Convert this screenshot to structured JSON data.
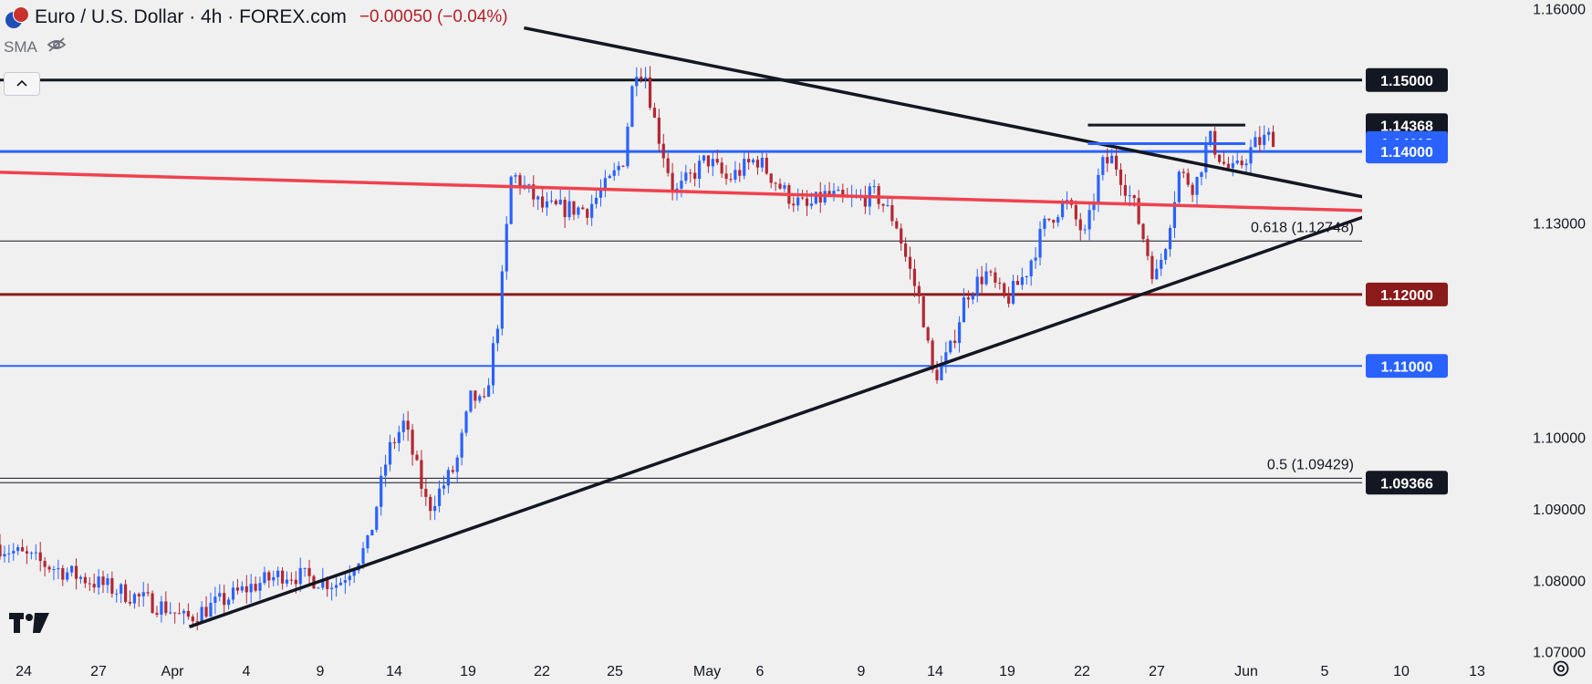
{
  "header": {
    "title": "Euro / U.S. Dollar · 4h · FOREX.com",
    "change": "−0.00050 (−0.04%)",
    "indicator": "SMA"
  },
  "icons": [
    "eur-usd-flag-icon",
    "eye-off-icon",
    "chevron-up-icon",
    "tradingview-logo-icon",
    "settings-gear-icon"
  ],
  "colors": {
    "up": "#2962ff",
    "down": "#b22833",
    "blue_level": "#2962ff",
    "dark_red_level": "#8b1a1a",
    "red_trend": "#f0414e",
    "black": "#131722",
    "grid_bg": "#f0f0f0"
  },
  "chart_data": {
    "type": "candlestick",
    "title": "Euro / U.S. Dollar · 4h · FOREX.com",
    "ylim": [
      1.0655,
      1.1612
    ],
    "y_ticks": [
      "1.16000",
      "1.13000",
      "1.10000",
      "1.09000",
      "1.08000",
      "1.07000"
    ],
    "y_tick_values": [
      1.16,
      1.13,
      1.1,
      1.09,
      1.08,
      1.07
    ],
    "x_ticks": [
      "24",
      "27",
      "Apr",
      "4",
      "9",
      "14",
      "19",
      "22",
      "25",
      "May",
      "6",
      "9",
      "14",
      "19",
      "22",
      "27",
      "Jun",
      "5",
      "10",
      "13"
    ],
    "price_labels": [
      {
        "text": "1.15000",
        "value": 1.15,
        "style": "black"
      },
      {
        "text": "1.14368",
        "value": 1.14368,
        "style": "black"
      },
      {
        "text": "1.14118",
        "value": 1.14118,
        "style": "blue"
      },
      {
        "text": "1.14000",
        "value": 1.14,
        "style": "blue"
      },
      {
        "text": "1.12000",
        "value": 1.12,
        "style": "darkred"
      },
      {
        "text": "1.11000",
        "value": 1.11,
        "style": "blue"
      },
      {
        "text": "1.09366",
        "value": 1.09366,
        "style": "black"
      }
    ],
    "horizontal_levels": [
      {
        "value": 1.15,
        "color": "black",
        "width": 3
      },
      {
        "value": 1.14,
        "color": "blue",
        "width": 3
      },
      {
        "value": 1.12,
        "color": "darkred",
        "width": 3
      },
      {
        "value": 1.11,
        "color": "blue",
        "width": 2
      },
      {
        "value": 1.12748,
        "color": "black",
        "width": 1
      },
      {
        "value": 1.09429,
        "color": "black",
        "width": 1
      },
      {
        "value": 1.09366,
        "color": "black",
        "width": 1
      }
    ],
    "fib_labels": [
      {
        "text": "0.618 (1.12748)",
        "value": 1.12748
      },
      {
        "text": "0.5 (1.09429)",
        "value": 1.09429
      }
    ],
    "trendlines": [
      {
        "name": "descending-resistance",
        "points": [
          [
            -0.64,
            1.1573
          ],
          [
            3.99,
            1.1313
          ]
        ],
        "color": "black"
      },
      {
        "name": "ascending-support",
        "points": [
          [
            -2.32,
            1.0735
          ],
          [
            3.99,
            1.1349
          ]
        ],
        "color": "black"
      },
      {
        "name": "red-trendline",
        "points": [
          [
            -3.27,
            1.1371
          ],
          [
            3.99,
            1.1314
          ]
        ],
        "color": "red"
      },
      {
        "name": "short-resistance",
        "points": [
          [
            2.19,
            1.1437
          ],
          [
            2.98,
            1.1437
          ]
        ],
        "color": "black"
      },
      {
        "name": "short-blue",
        "points": [
          [
            2.19,
            1.1411
          ],
          [
            2.98,
            1.1411
          ]
        ],
        "color": "blue"
      }
    ],
    "candles": []
  }
}
